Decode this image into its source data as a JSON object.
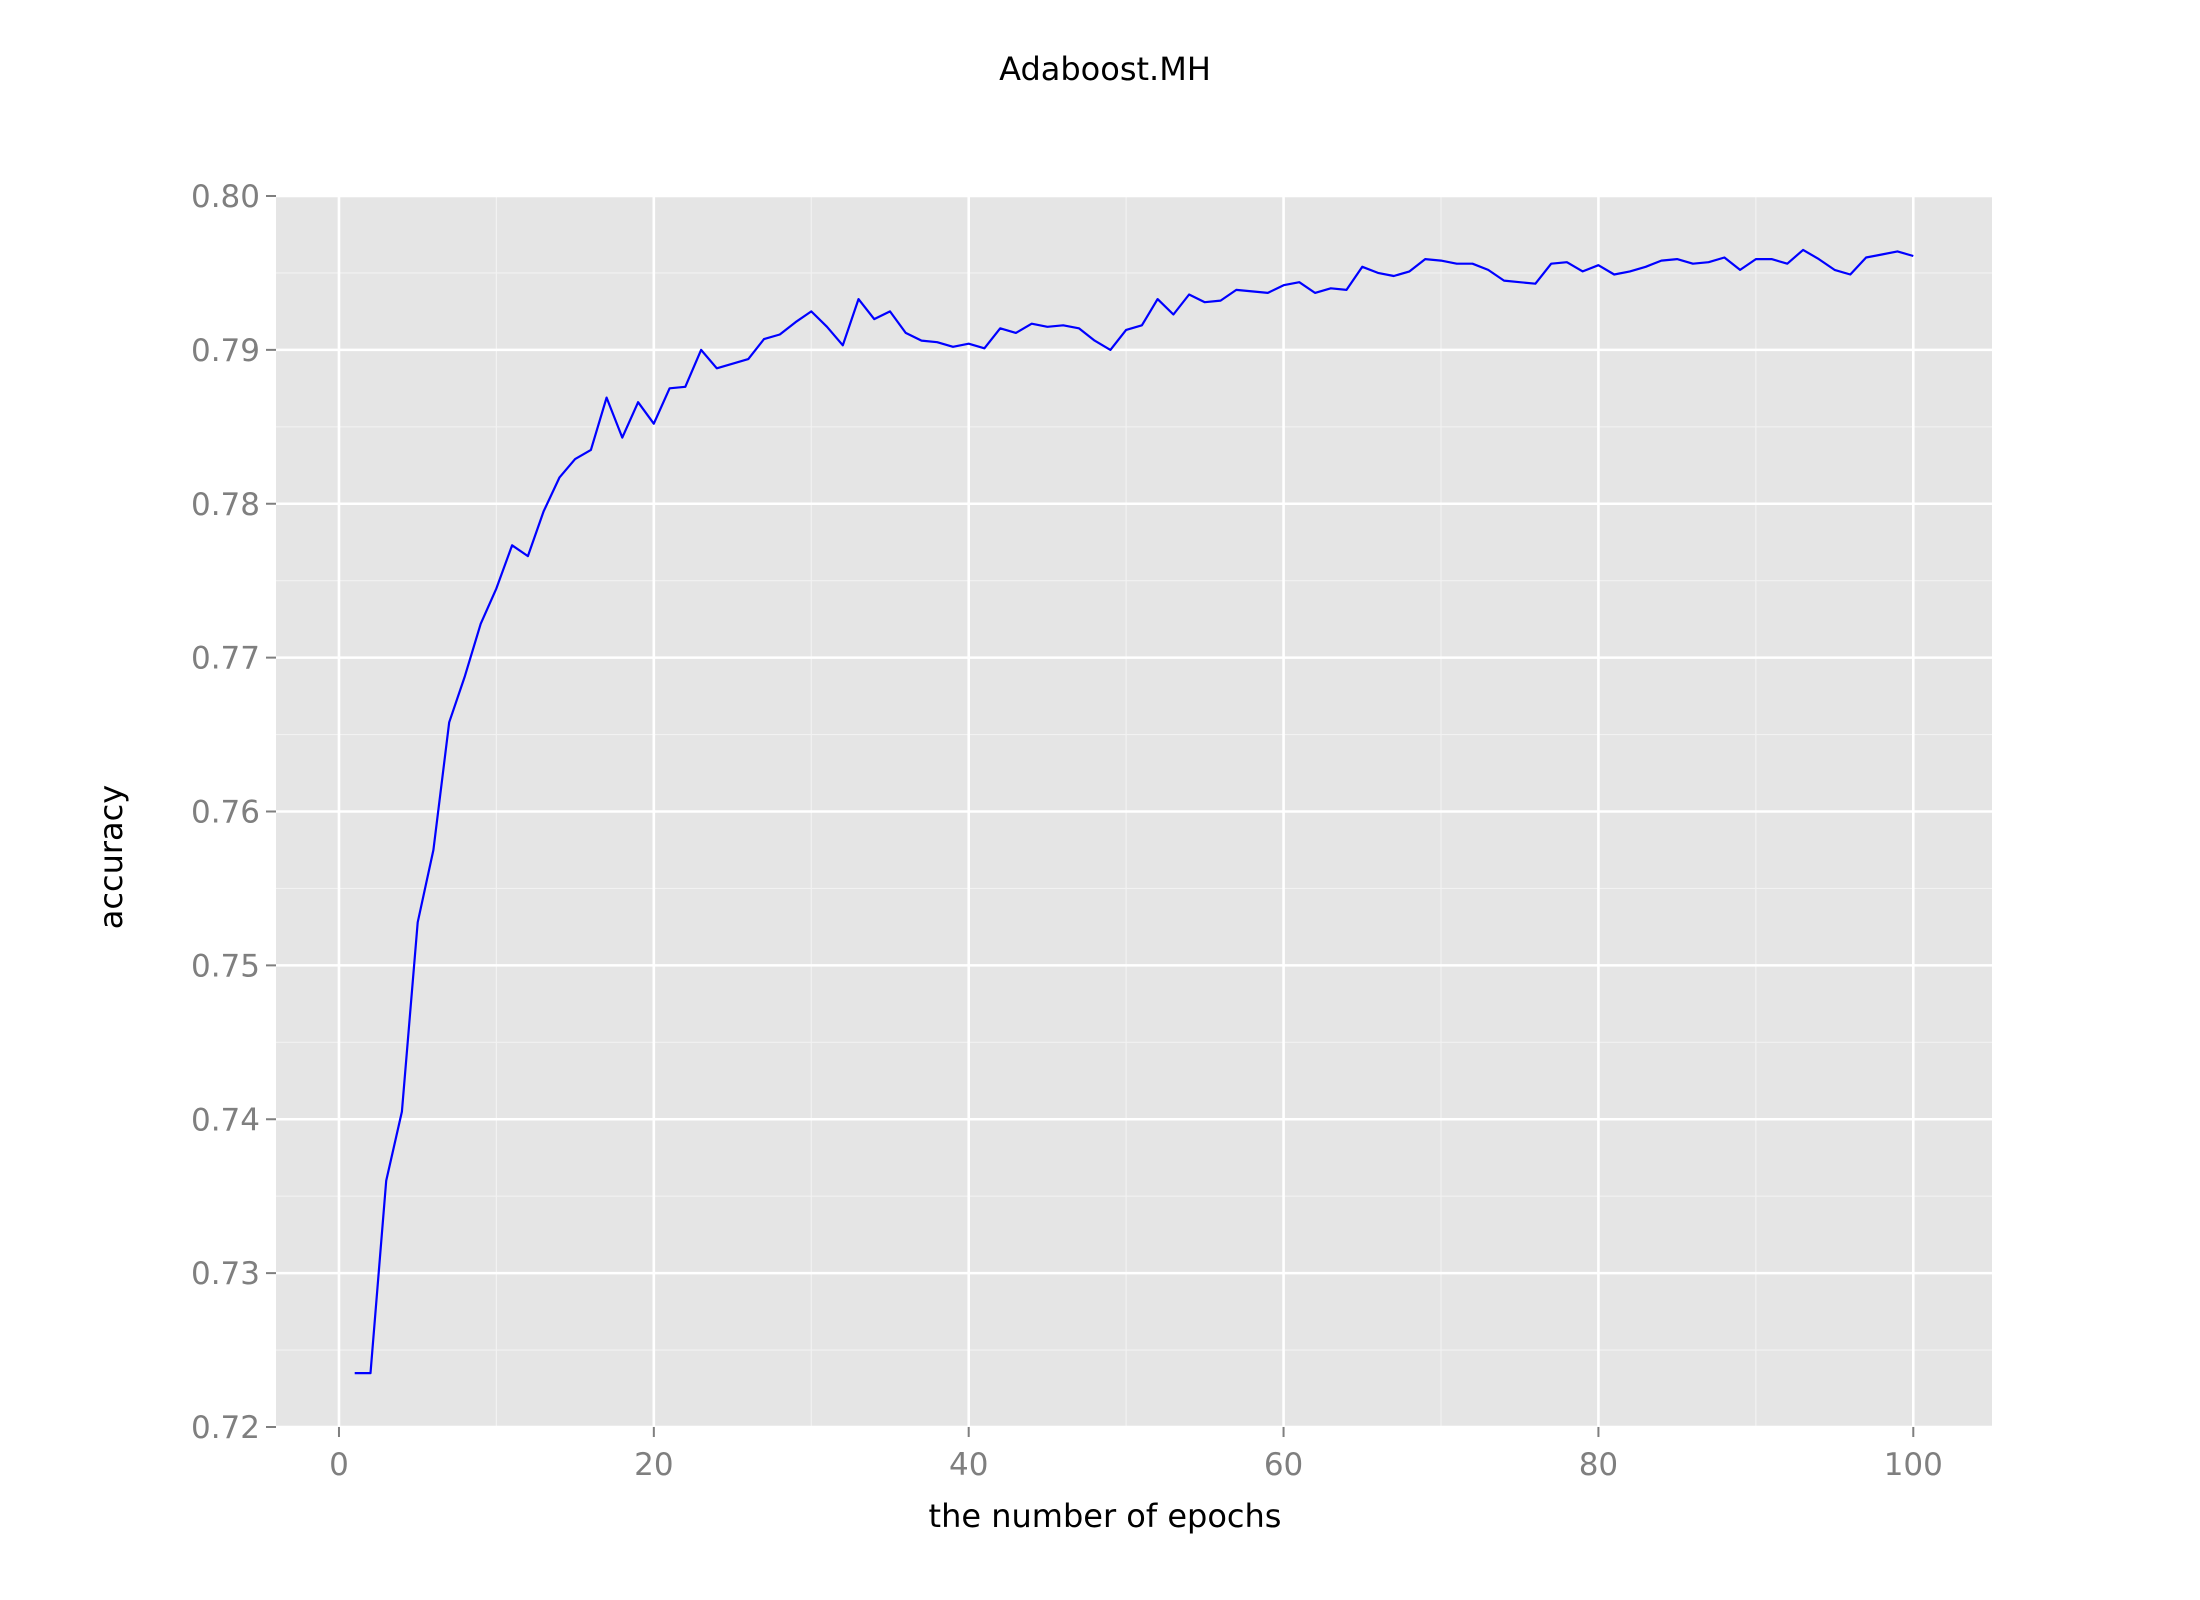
{
  "chart_data": {
    "type": "line",
    "title": "Adaboost.MH",
    "xlabel": "the number of epochs",
    "ylabel": "accuracy",
    "xlim": [
      -4,
      105
    ],
    "ylim": [
      0.72,
      0.8
    ],
    "x_ticks": [
      0,
      20,
      40,
      60,
      80,
      100
    ],
    "x_tick_labels": [
      "0",
      "20",
      "40",
      "60",
      "80",
      "100"
    ],
    "y_ticks": [
      0.72,
      0.73,
      0.74,
      0.75,
      0.76,
      0.77,
      0.78,
      0.79,
      0.8
    ],
    "y_tick_labels": [
      "0.72",
      "0.73",
      "0.74",
      "0.75",
      "0.76",
      "0.77",
      "0.78",
      "0.79",
      "0.80"
    ],
    "grid": true,
    "legend": "none",
    "colors": {
      "line": "#0000ff",
      "panel": "#e5e5e5",
      "grid_major": "#ffffff",
      "grid_minor": "#f2f2f2",
      "tick_text": "#7f7f7f"
    },
    "series": [
      {
        "x": [
          1,
          2,
          3,
          4,
          5,
          6,
          7,
          8,
          9,
          10,
          11,
          12,
          13,
          14,
          15,
          16,
          17,
          18,
          19,
          20,
          21,
          22,
          23,
          24,
          25,
          26,
          27,
          28,
          29,
          30,
          31,
          32,
          33,
          34,
          35,
          36,
          37,
          38,
          39,
          40,
          41,
          42,
          43,
          44,
          45,
          46,
          47,
          48,
          49,
          50,
          51,
          52,
          53,
          54,
          55,
          56,
          57,
          58,
          59,
          60,
          61,
          62,
          63,
          64,
          65,
          66,
          67,
          68,
          69,
          70,
          71,
          72,
          73,
          74,
          75,
          76,
          77,
          78,
          79,
          80,
          81,
          82,
          83,
          84,
          85,
          86,
          87,
          88,
          89,
          90,
          91,
          92,
          93,
          94,
          95,
          96,
          97,
          98,
          99,
          100
        ],
        "values": [
          0.7235,
          0.7235,
          0.736,
          0.7405,
          0.7528,
          0.7575,
          0.7658,
          0.7688,
          0.7722,
          0.7745,
          0.7773,
          0.7766,
          0.7795,
          0.7817,
          0.7829,
          0.7835,
          0.7869,
          0.7843,
          0.7866,
          0.7852,
          0.7875,
          0.7876,
          0.79,
          0.7888,
          0.7891,
          0.7894,
          0.7907,
          0.791,
          0.7918,
          0.7925,
          0.7915,
          0.7903,
          0.7933,
          0.792,
          0.7925,
          0.7911,
          0.7906,
          0.7905,
          0.7902,
          0.7904,
          0.7901,
          0.7914,
          0.7911,
          0.7917,
          0.7915,
          0.7916,
          0.7914,
          0.7906,
          0.79,
          0.7913,
          0.7916,
          0.7933,
          0.7923,
          0.7936,
          0.7931,
          0.7932,
          0.7939,
          0.7938,
          0.7937,
          0.7942,
          0.7944,
          0.7937,
          0.794,
          0.7939,
          0.7954,
          0.795,
          0.7948,
          0.7951,
          0.7959,
          0.7958,
          0.7956,
          0.7956,
          0.7952,
          0.7945,
          0.7944,
          0.7943,
          0.7956,
          0.7957,
          0.7951,
          0.7955,
          0.7949,
          0.7951,
          0.7954,
          0.7958,
          0.7959,
          0.7956,
          0.7957,
          0.796,
          0.7952,
          0.7959,
          0.7959,
          0.7956,
          0.7965,
          0.7959,
          0.7952,
          0.7949,
          0.796,
          0.7962,
          0.7964,
          0.7961
        ]
      }
    ]
  }
}
